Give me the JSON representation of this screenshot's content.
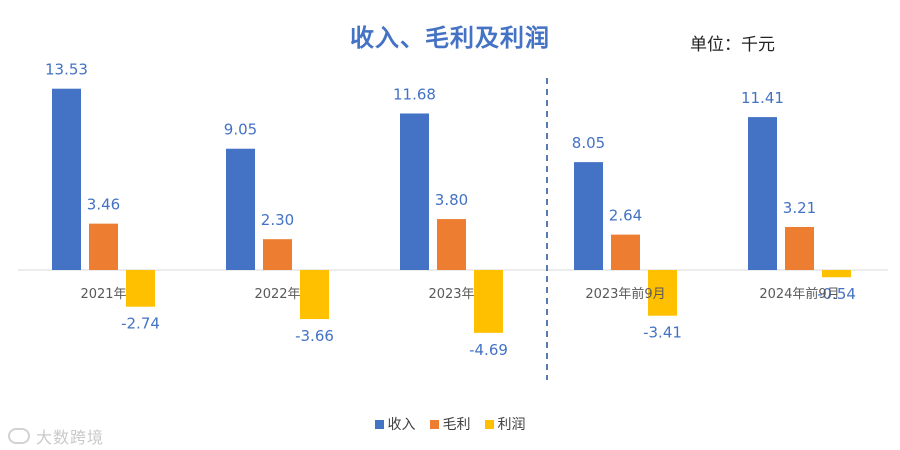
{
  "title": "收入、毛利及利润",
  "unit_label": "单位：千元",
  "watermark": "大数跨境",
  "colors": {
    "revenue": "#4472C4",
    "gross": "#ED7D31",
    "profit": "#FFC000",
    "label": "#4472C4",
    "axis": "#D9D9D9",
    "divider": "#2E5C9E"
  },
  "legend": [
    {
      "label": "收入",
      "color": "#4472C4"
    },
    {
      "label": "毛利",
      "color": "#ED7D31"
    },
    {
      "label": "利润",
      "color": "#FFC000"
    }
  ],
  "chart_data": {
    "type": "bar",
    "categories": [
      "2021年",
      "2022年",
      "2023年",
      "2023年前9月",
      "2024年前9月"
    ],
    "series": [
      {
        "name": "收入",
        "values": [
          13.53,
          9.05,
          11.68,
          8.05,
          11.41
        ]
      },
      {
        "name": "毛利",
        "values": [
          3.46,
          2.3,
          3.8,
          2.64,
          3.21
        ]
      },
      {
        "name": "利润",
        "values": [
          -2.74,
          -3.66,
          -4.69,
          -3.41,
          -0.54
        ]
      }
    ],
    "value_labels": [
      [
        "13.53",
        "9.05",
        "11.68",
        "8.05",
        "11.41"
      ],
      [
        "3.46",
        "2.30",
        "3.80",
        "2.64",
        "3.21"
      ],
      [
        "-2.74",
        "-3.66",
        "-4.69",
        "-3.41",
        "-0.54"
      ]
    ],
    "ylim": [
      -6,
      14
    ],
    "legend_position": "bottom-center",
    "grid": false
  }
}
